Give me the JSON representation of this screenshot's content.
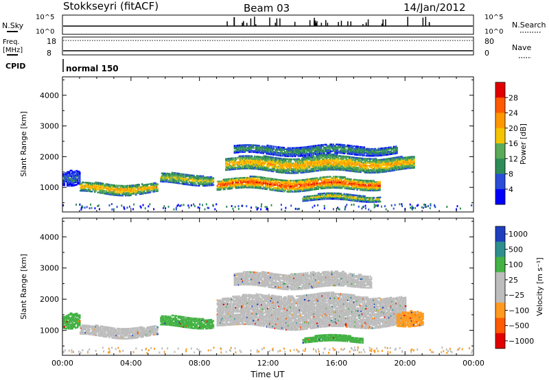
{
  "header": {
    "title": "Stokkseyri (fitACF)",
    "beam": "Beam 03",
    "date": "14/Jan/2012"
  },
  "status_panels": {
    "nsky_label": "N.Sky",
    "nsearch_label": "N.Search",
    "nsky_ticks": [
      "10^5",
      "10^0"
    ],
    "nsearch_ticks": [
      "10^5",
      "10^0"
    ],
    "freq_label": "Freq.",
    "freq_unit": "[MHz]",
    "freq_ticks": [
      "18",
      "8"
    ],
    "nave_label": "Nave",
    "nave_ticks": [
      "80",
      "0"
    ],
    "cpid_label": "CPID",
    "cpid_value": "normal 150"
  },
  "colors": {
    "power_scale": [
      "#0000ff",
      "#2a4ed8",
      "#2e8b57",
      "#5aaa5a",
      "#f5c400",
      "#ff9800",
      "#ff5a00",
      "#e00000"
    ],
    "velocity_scale": [
      "#1f3fbf",
      "#2f8f8f",
      "#44b244",
      "#bdbdbd",
      "#bdbdbd",
      "#ff9a1f",
      "#ff5a00",
      "#e00000"
    ]
  },
  "chart_data": [
    {
      "type": "heatmap",
      "name_panel": "power",
      "ylabel": "Slant Range [km]",
      "yticks": [
        "1000",
        "2000",
        "3000",
        "4000"
      ],
      "ylim": [
        200,
        4600
      ],
      "xlim_hours": [
        0,
        24
      ],
      "colorbar": {
        "label": "Power [dB]",
        "ticks": [
          "4",
          "8",
          "12",
          "16",
          "20",
          "24",
          "28"
        ],
        "range": [
          0,
          32
        ]
      },
      "echo_bands": [
        {
          "t_start": 0.0,
          "t_end": 1.0,
          "r_center": 1250,
          "r_width": 500,
          "level": 8
        },
        {
          "t_start": 1.0,
          "t_end": 5.5,
          "r_center": 950,
          "r_width": 350,
          "level": 22
        },
        {
          "t_start": 5.7,
          "t_end": 8.8,
          "r_center": 1250,
          "r_width": 350,
          "level": 18
        },
        {
          "t_start": 9.0,
          "t_end": 18.5,
          "r_center": 1100,
          "r_width": 400,
          "level": 28
        },
        {
          "t_start": 9.5,
          "t_end": 20.5,
          "r_center": 1750,
          "r_width": 500,
          "level": 22
        },
        {
          "t_start": 10.0,
          "t_end": 19.5,
          "r_center": 2200,
          "r_width": 300,
          "level": 12
        },
        {
          "t_start": 14.0,
          "t_end": 18.5,
          "r_center": 650,
          "r_width": 200,
          "level": 18
        }
      ]
    },
    {
      "type": "heatmap",
      "name_panel": "velocity",
      "ylabel": "Slant Range [km]",
      "yticks": [
        "1000",
        "2000",
        "3000",
        "4000"
      ],
      "ylim": [
        200,
        4600
      ],
      "xlabel": "Time UT",
      "xticks": [
        "00:00",
        "04:00",
        "08:00",
        "12:00",
        "16:00",
        "20:00",
        "00:00"
      ],
      "xlim_hours": [
        0,
        24
      ],
      "colorbar": {
        "label": "Velocity [m s⁻¹]",
        "ticks": [
          "1000",
          "500",
          "100",
          "25",
          "−25",
          "−100",
          "−500",
          "−1000"
        ]
      },
      "echo_bands": [
        {
          "t_start": 0.0,
          "t_end": 1.0,
          "r_center": 1250,
          "r_width": 500,
          "level": "100"
        },
        {
          "t_start": 1.0,
          "t_end": 5.5,
          "r_center": 950,
          "r_width": 350,
          "level": "25"
        },
        {
          "t_start": 5.7,
          "t_end": 8.8,
          "r_center": 1250,
          "r_width": 350,
          "level": "100"
        },
        {
          "t_start": 9.0,
          "t_end": 20.0,
          "r_center": 1600,
          "r_width": 1100,
          "level": "25"
        },
        {
          "t_start": 10.0,
          "t_end": 18.0,
          "r_center": 2600,
          "r_width": 500,
          "level": "25"
        },
        {
          "t_start": 19.5,
          "t_end": 21.0,
          "r_center": 1300,
          "r_width": 500,
          "level": "-100"
        },
        {
          "t_start": 14.0,
          "t_end": 17.5,
          "r_center": 700,
          "r_width": 200,
          "level": "100"
        }
      ]
    }
  ]
}
